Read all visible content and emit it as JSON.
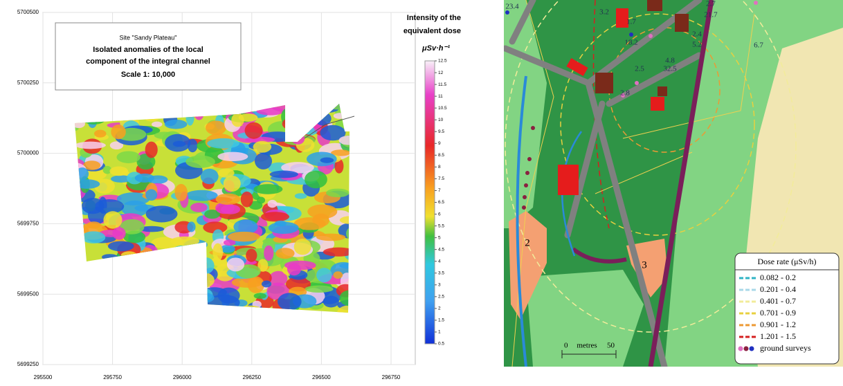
{
  "survey_map": {
    "site": "Site \"Sandy Plateau\"",
    "heading": [
      "Isolated anomalies of the local",
      "component of the integral channel"
    ],
    "scale": "Scale 1: 10,000",
    "legend_title": [
      "Intensity of the",
      "equivalent dose"
    ],
    "unit": "μSv·h⁻¹",
    "xticks": [
      295500,
      295750,
      296000,
      296250,
      296500,
      296750
    ],
    "yticks": [
      5700500,
      5700250,
      5700000,
      5699750,
      5699500,
      5699250
    ],
    "colorbar_ticks": [
      12.5,
      12,
      11.5,
      11,
      10.5,
      10,
      9.5,
      9,
      8.5,
      8,
      7.5,
      7,
      6.5,
      6,
      5.5,
      5,
      4.5,
      4,
      3.5,
      3,
      2.5,
      2,
      1.5,
      1,
      0.5
    ]
  },
  "site_map": {
    "dose_labels": [
      "23.4",
      "3.2",
      "1.7",
      "18.2",
      "2.7",
      "21.7",
      "2.4",
      "5.2",
      "4.8",
      "32.5",
      "6.7",
      "2.8",
      "2.5"
    ],
    "area_labels": [
      "2",
      "3"
    ],
    "scale_bar": [
      "0",
      "metres",
      "50"
    ],
    "legend": {
      "title": "Dose rate (μSv/h)",
      "entries": [
        {
          "label": "0.082 - 0.2",
          "color": "#2fb3c4"
        },
        {
          "label": "0.201 - 0.4",
          "color": "#a8d8e8"
        },
        {
          "label": "0.401 - 0.7",
          "color": "#f2ec9a"
        },
        {
          "label": "0.701 - 0.9",
          "color": "#e8d040"
        },
        {
          "label": "0.901 - 1.2",
          "color": "#ec9a34"
        },
        {
          "label": "1.201 - 1.5",
          "color": "#d42020"
        }
      ],
      "survey": "ground surveys"
    }
  }
}
